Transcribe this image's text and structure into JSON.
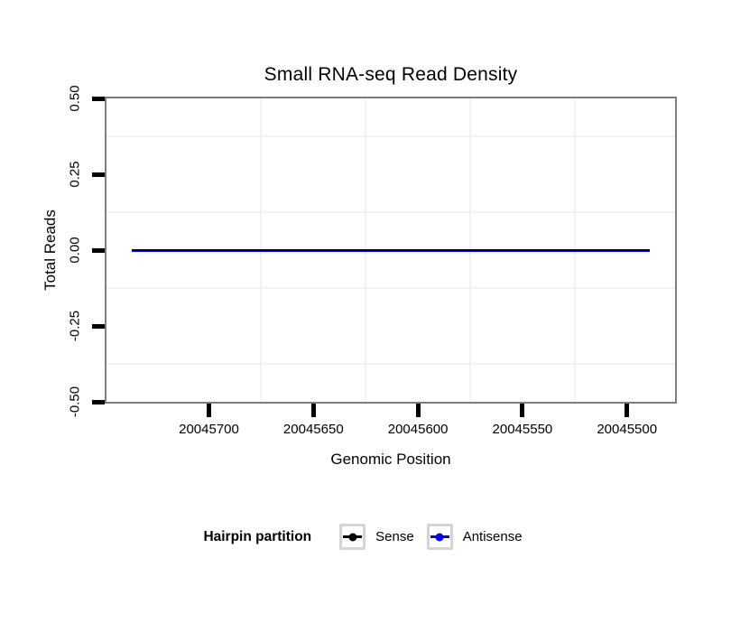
{
  "chart_data": {
    "type": "line",
    "title": "Small RNA-seq Read Density",
    "xlabel": "Genomic Position",
    "ylabel": "Total Reads",
    "x_axis": {
      "label": "Genomic Position",
      "min": 20045477,
      "max": 20045749,
      "reversed": true,
      "ticks": [
        20045700,
        20045650,
        20045600,
        20045550,
        20045500
      ],
      "tick_labels": [
        "20045700",
        "20045650",
        "20045600",
        "20045550",
        "20045500"
      ],
      "minor_gridlines": [
        20045675,
        20045625,
        20045575,
        20045525
      ]
    },
    "y_axis": {
      "label": "Total Reads",
      "min": -0.5,
      "max": 0.5,
      "ticks": [
        0.5,
        0.25,
        0,
        -0.25,
        -0.5
      ],
      "tick_labels": [
        "0.50",
        "0.25",
        "0.00",
        "-0.25",
        "-0.50"
      ],
      "minor_gridlines": [
        0.375,
        0.125,
        -0.125,
        -0.375
      ]
    },
    "series": [
      {
        "name": "Sense",
        "color": "#000000",
        "y": 0,
        "x_start": 20045737,
        "x_end": 20045489,
        "stroke_width": 2
      },
      {
        "name": "Antisense",
        "color": "#0000ff",
        "y": 0,
        "x_start": 20045737,
        "x_end": 20045489,
        "stroke_width": 3
      }
    ],
    "legend": {
      "title": "Hairpin partition",
      "position": "bottom",
      "entries": [
        {
          "label": "Sense",
          "color": "#000000"
        },
        {
          "label": "Antisense",
          "color": "#0000ff"
        }
      ]
    },
    "grid": "minor-only",
    "panel_background": "#ffffff",
    "panel_border_color": "#7d7d7d"
  }
}
